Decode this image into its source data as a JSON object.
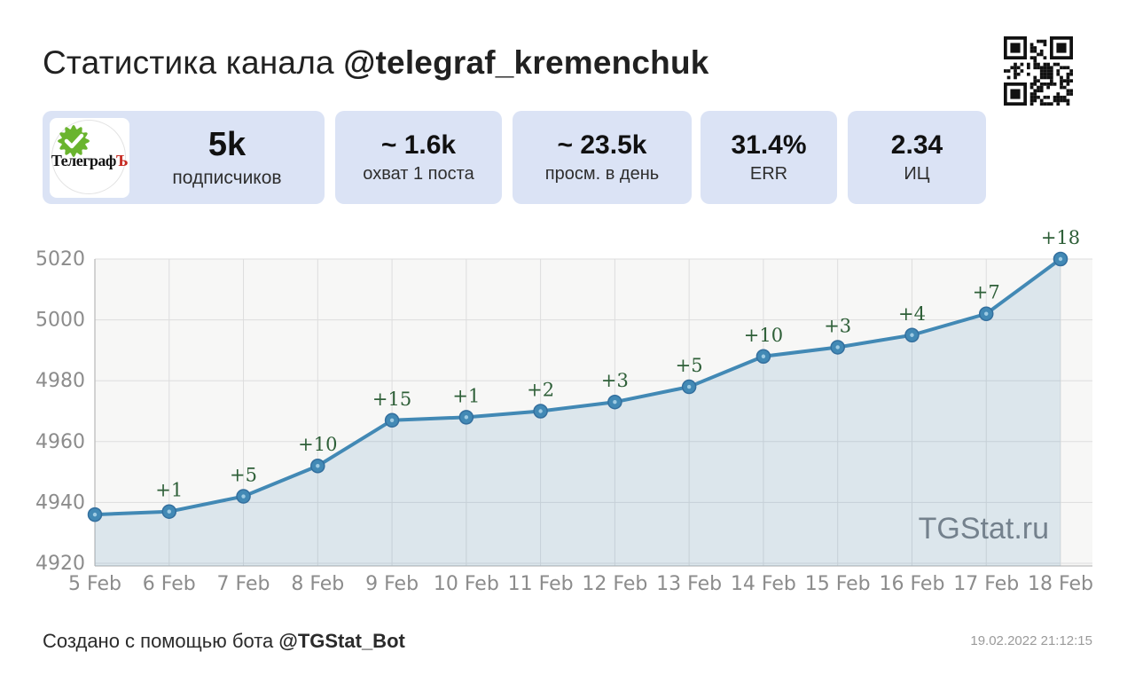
{
  "header": {
    "title_prefix": "Статистика канала ",
    "channel_handle": "@telegraf_kremenchuk"
  },
  "avatar": {
    "text_main": "Телеграф",
    "text_accent": "Ъ",
    "badge_color": "#6ab42e"
  },
  "stats_cards": [
    {
      "value": "5k",
      "label": "подписчиков"
    },
    {
      "value": "~ 1.6k",
      "label": "охват 1 поста"
    },
    {
      "value": "~ 23.5k",
      "label": "просм. в день"
    },
    {
      "value": "31.4%",
      "label": "ERR"
    },
    {
      "value": "2.34",
      "label": "ИЦ"
    }
  ],
  "chart_data": {
    "type": "area",
    "title": "",
    "xlabel": "",
    "ylabel": "",
    "x": [
      "5 Feb",
      "6 Feb",
      "7 Feb",
      "8 Feb",
      "9 Feb",
      "10 Feb",
      "11 Feb",
      "12 Feb",
      "13 Feb",
      "14 Feb",
      "15 Feb",
      "16 Feb",
      "17 Feb",
      "18 Feb"
    ],
    "values": [
      4936,
      4937,
      4942,
      4952,
      4967,
      4968,
      4970,
      4973,
      4978,
      4988,
      4991,
      4995,
      5002,
      5020
    ],
    "point_labels": [
      "",
      "+1",
      "+5",
      "+10",
      "+15",
      "+1",
      "+2",
      "+3",
      "+5",
      "+10",
      "+3",
      "+4",
      "+7",
      "+18"
    ],
    "ylim": [
      4920,
      5020
    ],
    "yticks": [
      4920,
      4940,
      4960,
      4980,
      5000,
      5020
    ],
    "grid": true,
    "legend": "none",
    "line_color": "#4289b5",
    "marker_edge_color": "#336f9e",
    "marker_dot_color": "#9ecbe3",
    "fill_color": "#4289b5",
    "fill_opacity": 0.15,
    "plot_bg": "#f7f7f6",
    "grid_color": "#dddddd",
    "spine_color": "#bcbcbc",
    "tick_color": "#8c8c8c",
    "annotation_color": "#2e5f38",
    "watermark": "TGStat.ru",
    "watermark_color": "#70757a"
  },
  "footer": {
    "text_prefix": "Создано с помощью бота ",
    "bot_handle": "@TGStat_Bot",
    "timestamp": "19.02.2022 21:12:15"
  }
}
